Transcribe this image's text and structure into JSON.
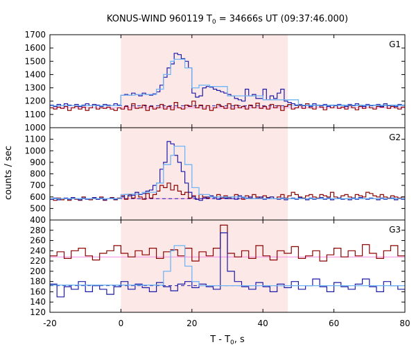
{
  "chart_data": {
    "type": "line",
    "title_main": "KONUS-WIND 960119 T",
    "title_sub": "0",
    "title_tail": " = 34666s UT (09:37:46.000)",
    "xlabel_main": "T - T",
    "xlabel_sub": "0",
    "xlabel_tail": ", s",
    "ylabel": "counts / sec",
    "xlim": [
      -20,
      80
    ],
    "x_ticks": [
      -20,
      0,
      20,
      40,
      60,
      80
    ],
    "x_tick_labels": [
      "-20",
      "0",
      "20",
      "40",
      "60",
      "80"
    ],
    "highlight_interval": [
      0,
      47
    ],
    "colors": {
      "highlight": "#fde8e8",
      "blue": "#1a1aa6",
      "dark_red": "#8b0000",
      "light_blue": "#6fb5f5",
      "pink": "#f08ce0",
      "dash_blue": "#1a1aa6"
    },
    "panels": [
      {
        "label": "G1",
        "ylim": [
          1000,
          1700
        ],
        "y_ticks": [
          1000,
          1100,
          1200,
          1300,
          1400,
          1500,
          1600,
          1700
        ],
        "y_tick_labels": [
          "1000",
          "1100",
          "1200",
          "1300",
          "1400",
          "1500",
          "1600",
          "1700"
        ],
        "bin_width": 1.0,
        "bin_start": -20,
        "blue_values": [
          1170,
          1160,
          1175,
          1165,
          1180,
          1170,
          1165,
          1175,
          1160,
          1170,
          1180,
          1165,
          1175,
          1170,
          1160,
          1175,
          1170,
          1165,
          1180,
          1170,
          1245,
          1250,
          1245,
          1260,
          1250,
          1240,
          1260,
          1250,
          1245,
          1255,
          1270,
          1320,
          1380,
          1450,
          1480,
          1560,
          1550,
          1520,
          1500,
          1450,
          1260,
          1230,
          1240,
          1300,
          1310,
          1305,
          1290,
          1280,
          1270,
          1260,
          1250,
          1240,
          1220,
          1210,
          1200,
          1290,
          1240,
          1250,
          1220,
          1220,
          1290,
          1210,
          1240,
          1220,
          1260,
          1290,
          1200,
          1190,
          1180,
          1170,
          1175,
          1165,
          1170,
          1160,
          1180,
          1170,
          1165,
          1175,
          1160,
          1170,
          1165,
          1175,
          1170,
          1160,
          1175,
          1165,
          1180,
          1170,
          1160,
          1175,
          1165,
          1170,
          1175,
          1160,
          1180,
          1165,
          1170,
          1160,
          1175,
          1170
        ],
        "red_values": [
          1150,
          1140,
          1155,
          1145,
          1160,
          1130,
          1150,
          1160,
          1140,
          1155,
          1130,
          1150,
          1165,
          1140,
          1150,
          1145,
          1155,
          1140,
          1130,
          1150,
          1140,
          1160,
          1135,
          1180,
          1145,
          1150,
          1170,
          1130,
          1160,
          1140,
          1150,
          1175,
          1140,
          1160,
          1135,
          1190,
          1150,
          1140,
          1170,
          1160,
          1200,
          1150,
          1170,
          1140,
          1165,
          1130,
          1150,
          1175,
          1160,
          1145,
          1180,
          1140,
          1170,
          1150,
          1160,
          1140,
          1170,
          1150,
          1185,
          1145,
          1160,
          1140,
          1175,
          1150,
          1165,
          1130,
          1160,
          1175,
          1140,
          1150,
          1165,
          1145,
          1180,
          1150,
          1140,
          1170,
          1155,
          1135,
          1160,
          1150,
          1170,
          1145,
          1155,
          1140,
          1165,
          1150,
          1135,
          1160,
          1145,
          1170,
          1150,
          1140,
          1160,
          1155,
          1170,
          1145,
          1160,
          1150,
          1140,
          1155
        ],
        "light_blue_bins": [
          [
            -20,
            0,
            1165
          ],
          [
            0,
            4,
            1245
          ],
          [
            4,
            6,
            1250
          ],
          [
            6,
            10,
            1250
          ],
          [
            10,
            12,
            1290
          ],
          [
            12,
            14,
            1400
          ],
          [
            14,
            15,
            1500
          ],
          [
            15,
            18,
            1515
          ],
          [
            18,
            20,
            1450
          ],
          [
            20,
            22,
            1300
          ],
          [
            22,
            25,
            1320
          ],
          [
            25,
            30,
            1310
          ],
          [
            30,
            40,
            1240
          ],
          [
            40,
            50,
            1210
          ],
          [
            50,
            80,
            1170
          ]
        ],
        "blue_bg": 1165,
        "red_bg": 1150,
        "dash_end": 47
      },
      {
        "label": "G2",
        "ylim": [
          400,
          1200
        ],
        "y_ticks": [
          400,
          500,
          600,
          700,
          800,
          900,
          1000,
          1100
        ],
        "y_tick_labels": [
          "400",
          "500",
          "600",
          "700",
          "800",
          "900",
          "1000",
          "1100"
        ],
        "bin_width": 1.0,
        "bin_start": -20,
        "blue_values": [
          580,
          590,
          575,
          585,
          590,
          580,
          595,
          585,
          575,
          590,
          580,
          585,
          595,
          580,
          590,
          575,
          585,
          590,
          580,
          585,
          600,
          620,
          610,
          615,
          640,
          620,
          630,
          650,
          660,
          700,
          720,
          840,
          900,
          1080,
          1060,
          960,
          900,
          820,
          720,
          640,
          600,
          580,
          570,
          590,
          600,
          610,
          595,
          580,
          600,
          590,
          585,
          600,
          580,
          610,
          595,
          590,
          600,
          585,
          590,
          600,
          580,
          590,
          600,
          585,
          580,
          590,
          575,
          585,
          590,
          580,
          595,
          585,
          575,
          590,
          580,
          585,
          595,
          580,
          590,
          575,
          585,
          590,
          580,
          585,
          575,
          590,
          580,
          595,
          585,
          580,
          590,
          585,
          575,
          590,
          580,
          585,
          590,
          575,
          585,
          580
        ],
        "red_values": [
          580,
          570,
          590,
          575,
          585,
          570,
          595,
          580,
          570,
          600,
          585,
          575,
          590,
          580,
          600,
          570,
          585,
          595,
          575,
          590,
          610,
          580,
          620,
          590,
          640,
          600,
          580,
          630,
          590,
          620,
          650,
          700,
          680,
          720,
          660,
          700,
          650,
          620,
          640,
          590,
          610,
          580,
          620,
          600,
          590,
          610,
          600,
          620,
          590,
          610,
          595,
          600,
          620,
          600,
          580,
          610,
          590,
          620,
          600,
          590,
          610,
          595,
          600,
          585,
          600,
          620,
          590,
          610,
          640,
          620,
          600,
          590,
          610,
          620,
          600,
          590,
          620,
          610,
          600,
          640,
          600,
          590,
          610,
          620,
          600,
          590,
          620,
          610,
          600,
          640,
          630,
          610,
          600,
          620,
          600,
          590,
          610,
          600,
          590,
          600
        ],
        "light_blue_bins": [
          [
            -20,
            0,
            585
          ],
          [
            0,
            2,
            620
          ],
          [
            2,
            6,
            625
          ],
          [
            6,
            10,
            640
          ],
          [
            10,
            12,
            720
          ],
          [
            12,
            14,
            880
          ],
          [
            14,
            15,
            960
          ],
          [
            15,
            18,
            1040
          ],
          [
            18,
            20,
            880
          ],
          [
            20,
            22,
            680
          ],
          [
            22,
            25,
            620
          ],
          [
            25,
            35,
            600
          ],
          [
            35,
            80,
            585
          ]
        ],
        "blue_bg": 585,
        "red_bg": 585,
        "dash_end": 47
      },
      {
        "label": "G3",
        "ylim": [
          120,
          300
        ],
        "y_ticks": [
          120,
          140,
          160,
          180,
          200,
          220,
          240,
          260,
          280
        ],
        "y_tick_labels": [
          "120",
          "140",
          "160",
          "180",
          "200",
          "220",
          "240",
          "260",
          "280"
        ],
        "bin_width": 2.0,
        "bin_start": -20,
        "blue_values": [
          175,
          150,
          170,
          165,
          180,
          160,
          172,
          165,
          155,
          170,
          180,
          165,
          175,
          168,
          160,
          178,
          170,
          162,
          175,
          180,
          168,
          175,
          170,
          165,
          275,
          200,
          180,
          170,
          165,
          178,
          170,
          160,
          175,
          168,
          180,
          165,
          172,
          185,
          170,
          160,
          178,
          170,
          165,
          175,
          185,
          170,
          160,
          180,
          172,
          165
        ],
        "red_values": [
          230,
          238,
          225,
          240,
          245,
          230,
          222,
          235,
          240,
          250,
          235,
          228,
          240,
          232,
          245,
          225,
          238,
          242,
          230,
          245,
          220,
          238,
          230,
          245,
          290,
          235,
          228,
          240,
          225,
          250,
          230,
          222,
          240,
          235,
          248,
          225,
          230,
          240,
          220,
          232,
          245,
          228,
          240,
          230,
          252,
          235,
          225,
          240,
          250,
          230
        ],
        "light_blue_bins": [
          [
            -20,
            0,
            173
          ],
          [
            0,
            12,
            173
          ],
          [
            12,
            14,
            200
          ],
          [
            14,
            15,
            240
          ],
          [
            15,
            18,
            250
          ],
          [
            18,
            20,
            210
          ],
          [
            20,
            22,
            180
          ],
          [
            22,
            80,
            172
          ]
        ],
        "blue_bg": 172,
        "red_bg": 228,
        "dash_end": 47
      }
    ]
  }
}
